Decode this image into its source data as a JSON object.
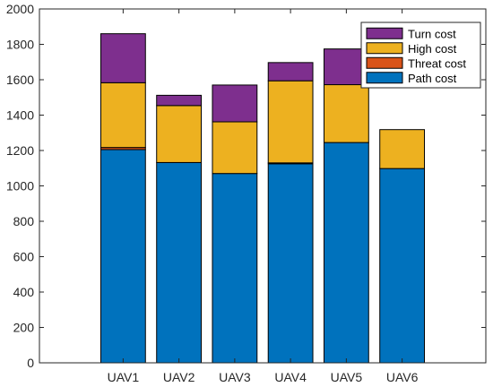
{
  "chart_data": {
    "type": "bar",
    "stacked": true,
    "categories": [
      "UAV1",
      "UAV2",
      "UAV3",
      "UAV4",
      "UAV5",
      "UAV6"
    ],
    "series": [
      {
        "name": "Path cost",
        "color": "#0072BD",
        "values": [
          1205,
          1132,
          1070,
          1125,
          1245,
          1098
        ]
      },
      {
        "name": "Threat cost",
        "color": "#D95319",
        "values": [
          12,
          0,
          0,
          5,
          0,
          0
        ]
      },
      {
        "name": "High cost",
        "color": "#EDB120",
        "values": [
          366,
          322,
          292,
          464,
          327,
          220
        ]
      },
      {
        "name": "Turn cost",
        "color": "#7E2F8E",
        "values": [
          277,
          58,
          208,
          103,
          202,
          0
        ]
      }
    ],
    "legend_order": [
      "Turn cost",
      "High cost",
      "Threat cost",
      "Path cost"
    ],
    "ylim": [
      0,
      2000
    ],
    "yticks": [
      0,
      200,
      400,
      600,
      800,
      1000,
      1200,
      1400,
      1600,
      1800,
      2000
    ],
    "legend_position": "top-right",
    "grid": false
  }
}
